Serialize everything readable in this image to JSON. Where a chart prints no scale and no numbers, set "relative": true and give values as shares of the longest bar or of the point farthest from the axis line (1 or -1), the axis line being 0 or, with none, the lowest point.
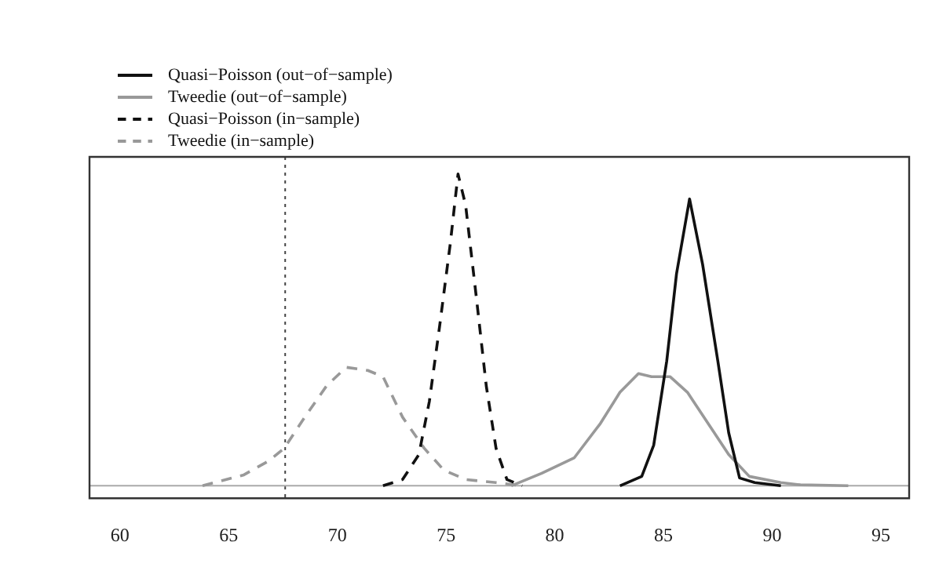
{
  "chart_data": {
    "type": "line",
    "relative": true,
    "legend": "top left",
    "grid": false,
    "marker": "none",
    "xlim": [
      58.6,
      96.3
    ],
    "xticks": [
      60,
      65,
      70,
      75,
      80,
      85,
      90,
      95
    ],
    "tick_labels": "x",
    "ref_lines": [
      {
        "axis": "x",
        "value": 67.6,
        "color": "#444444",
        "line_style": "dotted"
      },
      {
        "axis": "y",
        "value": 0,
        "color": "#aaaaaa",
        "line_style": "solid"
      }
    ],
    "series": [
      {
        "name": "Quasi−Poisson (out−of−sample)",
        "color": "#111111",
        "line_style": "solid",
        "x": [
          83.0,
          84.0,
          84.55,
          85.15,
          85.6,
          86.2,
          86.8,
          87.5,
          88.0,
          88.5,
          89.2,
          90.4
        ],
        "values": [
          0,
          0.03,
          0.13,
          0.4,
          0.68,
          0.92,
          0.71,
          0.4,
          0.17,
          0.025,
          0.01,
          0
        ]
      },
      {
        "name": "Tweedie (out−of−sample)",
        "color": "#999999",
        "line_style": "solid",
        "x": [
          78.0,
          79.4,
          80.9,
          82.1,
          83.0,
          83.85,
          84.45,
          85.3,
          86.1,
          87.05,
          88.0,
          88.95,
          90.4,
          91.3,
          93.5
        ],
        "values": [
          0,
          0.04,
          0.09,
          0.2,
          0.3,
          0.36,
          0.35,
          0.35,
          0.3,
          0.2,
          0.1,
          0.03,
          0.01,
          0.003,
          0
        ]
      },
      {
        "name": "Quasi−Poisson (in−sample)",
        "color": "#111111",
        "line_style": "dashed",
        "x": [
          72.1,
          73.0,
          73.75,
          74.23,
          74.7,
          75.2,
          75.55,
          75.9,
          76.4,
          76.85,
          77.3,
          77.8,
          78.5
        ],
        "values": [
          0,
          0.02,
          0.1,
          0.27,
          0.51,
          0.78,
          1.0,
          0.9,
          0.6,
          0.32,
          0.12,
          0.02,
          0
        ]
      },
      {
        "name": "Tweedie (in−sample)",
        "color": "#999999",
        "line_style": "dashed",
        "x": [
          63.8,
          65.7,
          66.85,
          67.55,
          68.5,
          69.5,
          70.4,
          71.4,
          72.1,
          73.0,
          74.0,
          74.9,
          75.9,
          77.3,
          78.5
        ],
        "values": [
          0,
          0.035,
          0.08,
          0.12,
          0.22,
          0.32,
          0.38,
          0.37,
          0.35,
          0.22,
          0.12,
          0.05,
          0.02,
          0.01,
          0
        ]
      }
    ]
  }
}
